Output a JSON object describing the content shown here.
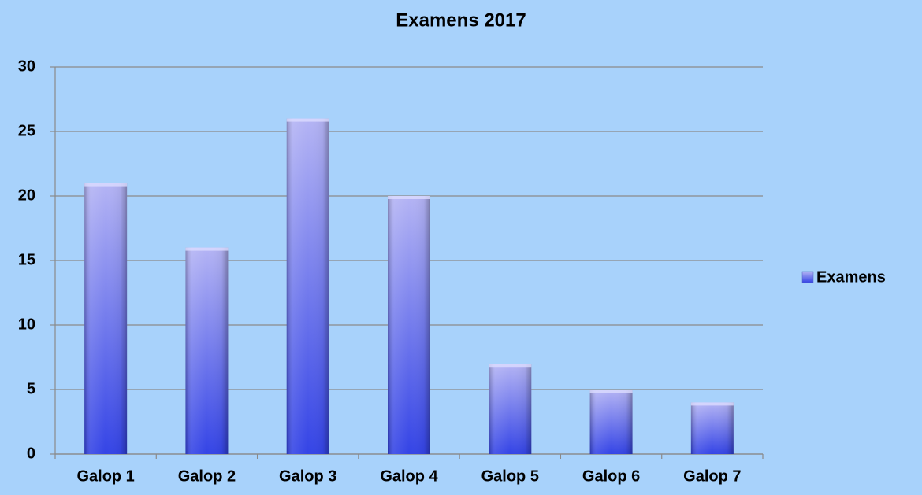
{
  "chart_data": {
    "type": "bar",
    "title": "Examens 2017",
    "categories": [
      "Galop 1",
      "Galop 2",
      "Galop 3",
      "Galop 4",
      "Galop 5",
      "Galop 6",
      "Galop 7"
    ],
    "series": [
      {
        "name": "Examens",
        "color": "#3444e6",
        "values": [
          21,
          16,
          26,
          20,
          7,
          5,
          4
        ]
      }
    ],
    "ylim": [
      0,
      30
    ],
    "yticks": [
      0,
      5,
      10,
      15,
      20,
      25,
      30
    ],
    "grid": true,
    "legend": "right"
  }
}
